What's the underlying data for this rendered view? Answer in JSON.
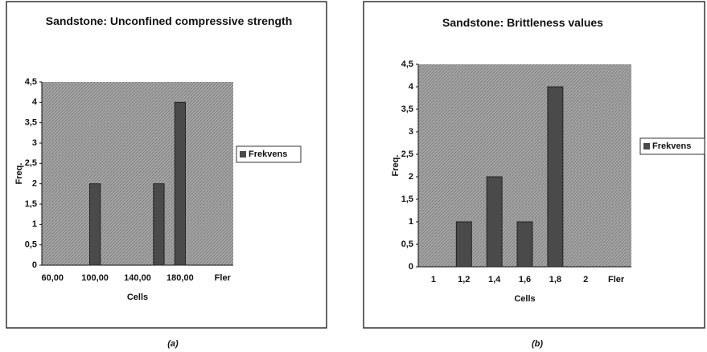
{
  "chart_data": [
    {
      "type": "bar",
      "title": "Sandstone: Unconfined compressive strength",
      "x_label": "Cells",
      "y_label": "Freq.",
      "caption": "(a)",
      "categories": [
        "60,00",
        null,
        "100,00",
        null,
        "140,00",
        null,
        "180,00",
        null,
        "Fler"
      ],
      "series": [
        {
          "name": "Frekvens",
          "color": "#4a4a4a",
          "values": [
            0,
            0,
            2,
            0,
            0,
            2,
            4,
            0,
            0
          ]
        }
      ],
      "ylim": [
        0,
        4.5
      ],
      "yticks": [
        0,
        {
          "value": 0.5,
          "label": "0,5"
        },
        1,
        {
          "value": 1.5,
          "label": "1,5"
        },
        2,
        {
          "value": 2.5,
          "label": "2,5"
        },
        3,
        {
          "value": 3.5,
          "label": "3,5"
        },
        4,
        {
          "value": 4.5,
          "label": "4,5"
        }
      ],
      "legend": "right"
    },
    {
      "type": "bar",
      "title": "Sandstone: Brittleness values",
      "x_label": "Cells",
      "y_label": "Freq.",
      "caption": "(b)",
      "categories": [
        "1",
        "1,2",
        "1,4",
        "1,6",
        "1,8",
        "2",
        "Fler"
      ],
      "series": [
        {
          "name": "Frekvens",
          "color": "#4a4a4a",
          "values": [
            0,
            1,
            2,
            1,
            4,
            0,
            0
          ]
        }
      ],
      "ylim": [
        0,
        4.5
      ],
      "yticks": [
        0,
        {
          "value": 0.5,
          "label": "0,5"
        },
        1,
        {
          "value": 1.5,
          "label": "1,5"
        },
        2,
        {
          "value": 2.5,
          "label": "2,5"
        },
        3,
        {
          "value": 3.5,
          "label": "3,5"
        },
        4,
        {
          "value": 4.5,
          "label": "4,5"
        }
      ],
      "legend": "right"
    }
  ]
}
